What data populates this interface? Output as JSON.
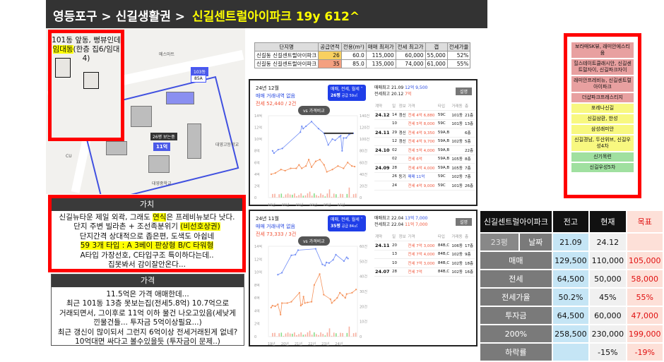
{
  "header": {
    "breadcrumb": "영등포구 > 신길생활권 >",
    "title": "신길센트럴아이파크 19y 612^"
  },
  "map": {
    "note_line1": "101동 앞동, 뻥뷰인데",
    "note_hl": "임대동",
    "note_rest": "(한층 집6/임대4)",
    "labels": {
      "mart": "메스마트",
      "dong": "103동",
      "area": "85A",
      "badge": "26평 보는중",
      "price_top": "26평",
      "price": "11억",
      "school1": "대영고등학교",
      "school2": "대영중학교",
      "cu": "CU",
      "complex": "신길센트럴아이파크"
    }
  },
  "value_box": {
    "title": "가치",
    "lines": [
      {
        "parts": [
          {
            "t": "신길뉴타운 제일 외곽, 그래도 "
          },
          {
            "t": "연식",
            "hl": true
          },
          {
            "t": "은 프레비뉴보다 낫다."
          }
        ]
      },
      {
        "parts": [
          {
            "t": "단지 주변 빌라촌 + 조선족분위기 "
          },
          {
            "t": "(비선호상권)",
            "hl": true
          }
        ]
      },
      {
        "parts": [
          {
            "t": "단지간격 상대적으로 좁은편, 도색도 아쉽네"
          }
        ]
      },
      {
        "parts": [
          {
            "t": "59 3개 타입 : A 3베이 판상형 B/C 타워형",
            "hl": true
          }
        ]
      },
      {
        "parts": [
          {
            "t": "A타입 가장선호, C타입구조 특이하다는데.."
          }
        ]
      },
      {
        "parts": [
          {
            "t": "집못봐서 감이잘안온다..."
          }
        ]
      }
    ]
  },
  "price_box": {
    "title": "가격",
    "lines": [
      "11.5억은 가격 애매한데...",
      "최근 101동 13층 못보는집(전세5.8억) 10.7억으로",
      "거래되면서, 그이후로 11억 이하 물건 나오고있음(세낮게",
      "낀물건들... 투자금 5억이상필요...)",
      "최근 갱신이 많이되서 그런지 6억이상 전세거래된게 없네?",
      "10억대면 싸다고 볼수있을듯 (투자금이 문제..)"
    ]
  },
  "excel": {
    "headers": [
      "단지명",
      "공급면적",
      "전용(m²)",
      "매매 최저가",
      "전세 최고가",
      "갭",
      "전세가율"
    ],
    "rows": [
      [
        "신길동 신길센트럴아이파크",
        "26",
        "60.0",
        "115,000",
        "60,000",
        "55,000",
        "52%"
      ],
      [
        "신길동 신길센트럴아이파크",
        "35",
        "85.0",
        "135,000",
        "74,000",
        "61,000",
        "55%"
      ]
    ]
  },
  "panels": [
    {
      "date": "24년 12월",
      "sale": "매매 거래내역 없음",
      "jeonse": "전세 52,440 / 2건",
      "tag1": "매매, 전세, 월세 ˅",
      "tag2": "26평",
      "tag3": "공급 59㎡",
      "vs": "vs 가격비교",
      "max_sale": "매매최고 21.09",
      "max_sale_v": "12억 9,500",
      "max_jeonse": "전세최고 20.12",
      "max_jeonse_v": "7억",
      "btn": "설명",
      "cols": [
        "계약",
        "일",
        "정보",
        "가격",
        "타입",
        "거래동",
        "층"
      ],
      "deals": [
        [
          "24.12",
          "14",
          "갱신",
          "전세 4억 6,880",
          "59C",
          "101동",
          "21층"
        ],
        [
          "",
          "10",
          "",
          "전세 5억 8,000",
          "59C",
          "101동",
          "13층"
        ],
        [
          "24.11",
          "29",
          "갱신",
          "전세 4억 9,350",
          "59A,B",
          "",
          "6층"
        ],
        [
          "",
          "12",
          "갱신",
          "전세 4억 9,700",
          "59A,B",
          "102동",
          "5층"
        ],
        [
          "24.10",
          "02",
          "",
          "전세 5억 4,000",
          "59A,B",
          "",
          "22층"
        ],
        [
          "",
          "02",
          "",
          "전세 6억",
          "59A,B",
          "105동",
          "8층"
        ],
        [
          "24.09",
          "28",
          "",
          "전세 4억 4,000",
          "59A,B",
          "105동",
          "7층"
        ],
        [
          "",
          "26",
          "등기",
          "매매 11억",
          "59C",
          "102동",
          "7층"
        ],
        [
          "",
          "24",
          "",
          "전세 4억 9,000",
          "59C",
          "101동",
          "26층"
        ]
      ],
      "chart": {
        "left_ticks": [
          "14억",
          "12억",
          "10억",
          "8억",
          "6억",
          "4억",
          "2억",
          "0"
        ],
        "right_ticks": [
          "140건",
          "120건",
          "100건",
          "80건",
          "60건",
          "40건",
          "20건",
          "0"
        ],
        "x_ticks": [
          "19년",
          "20년",
          "21년",
          "22년",
          "23년",
          "24년"
        ],
        "sale": [
          [
            19.1,
            8
          ],
          [
            19.2,
            7.6
          ],
          [
            19.5,
            8.2
          ],
          [
            19.8,
            8.4
          ],
          [
            21.1,
            11.2
          ],
          [
            21.2,
            12.2
          ],
          [
            21.3,
            11.8
          ],
          [
            21.5,
            12.2
          ],
          [
            21.9,
            13
          ],
          [
            22.4,
            11.8
          ],
          [
            22.8,
            11
          ],
          [
            23.1,
            9
          ],
          [
            23.4,
            10
          ],
          [
            23.6,
            9.8
          ],
          [
            23.9,
            10.4
          ],
          [
            24.0,
            10.6
          ],
          [
            24.1,
            8
          ],
          [
            24.2,
            10.2
          ],
          [
            24.4,
            10.2
          ],
          [
            24.6,
            10.8
          ],
          [
            24.9,
            11
          ]
        ],
        "jeonse": [
          [
            19.0,
            4
          ],
          [
            19.3,
            4.2
          ],
          [
            19.7,
            4.8
          ],
          [
            20.0,
            4.6
          ],
          [
            20.4,
            5
          ],
          [
            20.8,
            5
          ],
          [
            21.0,
            5.6
          ],
          [
            21.2,
            5
          ],
          [
            21.5,
            5.4
          ],
          [
            21.7,
            6.5
          ],
          [
            21.9,
            5.2
          ],
          [
            22.2,
            6.2
          ],
          [
            22.5,
            6.5
          ],
          [
            22.8,
            5.6
          ],
          [
            23.0,
            4.4
          ],
          [
            23.4,
            4.8
          ],
          [
            23.8,
            5.4
          ],
          [
            24.2,
            5
          ],
          [
            24.5,
            6
          ],
          [
            24.8,
            5.4
          ],
          [
            25.0,
            5.3
          ]
        ],
        "ref_line": 11,
        "ylim": [
          0,
          14
        ],
        "xlim": [
          18.8,
          25.2
        ]
      }
    },
    {
      "date": "24년 11월",
      "sale": "매매 거래내역 없음",
      "jeonse": "전세 73,333 / 3건",
      "tag1": "매매, 전세, 월세 ˅",
      "tag2": "35평",
      "tag3": "공급 84㎡",
      "vs": "vs 가격비교",
      "max_sale": "매매최고 22.04",
      "max_sale_v": "13억 7,000",
      "max_jeonse": "전세최고 22.04",
      "max_jeonse_v": "11억 7,000",
      "btn": "설명",
      "cols": [
        "계약",
        "일",
        "정보",
        "가격",
        "타입",
        "거래동",
        "층"
      ],
      "deals": [
        [
          "24.11",
          "20",
          "",
          "전세 7억 3,000",
          "84B,C",
          "106동",
          "17층"
        ],
        [
          "",
          "13",
          "",
          "전세 7억 4,000",
          "84B,C",
          "102동",
          "9층"
        ],
        [
          "",
          "10",
          "",
          "전세 7억 3,000",
          "84B,C",
          "102동",
          "18층"
        ],
        [
          "24.07",
          "28",
          "",
          "전세 7억",
          "84B,C",
          "102동",
          "16층"
        ]
      ],
      "chart": {
        "left_ticks": [
          "14억",
          "12억",
          "10억",
          "8억",
          "6억",
          "4억",
          "2억",
          "0"
        ],
        "right_ticks": [
          "60건",
          "50건",
          "40건",
          "30건",
          "20건",
          "10건",
          "0"
        ],
        "x_ticks": [
          "19년",
          "20년",
          "21년",
          "22년",
          "23년",
          "24년"
        ],
        "sale": [
          [
            19.5,
            9.6
          ],
          [
            19.8,
            9.9
          ],
          [
            20.5,
            12.6
          ],
          [
            20.8,
            12.7
          ],
          [
            21.0,
            13.4
          ],
          [
            22.3,
            13.6
          ],
          [
            22.8,
            11.2
          ],
          [
            23.0,
            11
          ],
          [
            23.1,
            11.5
          ],
          [
            23.3,
            11.4
          ],
          [
            23.6,
            11.9
          ],
          [
            23.8,
            12.7
          ],
          [
            24.4,
            11.7
          ],
          [
            24.6,
            12.3
          ],
          [
            24.7,
            12.1
          ]
        ],
        "jeonse": [
          [
            19.0,
            4.5
          ],
          [
            19.1,
            4.8
          ],
          [
            19.3,
            4.7
          ],
          [
            19.5,
            5
          ],
          [
            19.7,
            3.4
          ],
          [
            19.8,
            5.2
          ],
          [
            20.2,
            5.2
          ],
          [
            20.5,
            5.4
          ],
          [
            21.1,
            6.8
          ],
          [
            21.2,
            4.8
          ],
          [
            21.3,
            5
          ],
          [
            21.4,
            6.2
          ],
          [
            21.5,
            5.2
          ],
          [
            21.7,
            5.3
          ],
          [
            22.0,
            5.4
          ],
          [
            22.2,
            8
          ],
          [
            22.6,
            9.7
          ],
          [
            22.9,
            6.5
          ],
          [
            23.4,
            5.8
          ],
          [
            23.5,
            5.2
          ],
          [
            23.7,
            5.6
          ],
          [
            23.9,
            6
          ],
          [
            24.1,
            6.8
          ],
          [
            24.3,
            6.4
          ],
          [
            24.5,
            6
          ],
          [
            24.6,
            6.6
          ],
          [
            25.0,
            6.8
          ],
          [
            25.3,
            7.3
          ]
        ],
        "ylim": [
          0,
          14
        ],
        "xlim": [
          18.8,
          25.4
        ]
      }
    }
  ],
  "ranking": [
    {
      "t": "보라매SK뷰, 래미안에스티움",
      "c": "pk"
    },
    {
      "t": "힐스테이트클래시안, 신길센트럴자이, 신길파크자이",
      "c": "pk"
    },
    {
      "t": "래미안프레비뉴, 신길센트럴아이파크",
      "c": "pk"
    },
    {
      "t": "더샵파크프레스티지",
      "c": "pk"
    },
    {
      "t": "포레나신길",
      "c": "yw"
    },
    {
      "t": "신길삼환, 한성",
      "c": "yw"
    },
    {
      "t": "삼성래미안",
      "c": "yw"
    },
    {
      "t": "신길경남, 두산위브, 신길우성4차",
      "c": "yw"
    },
    {
      "t": "신기목련",
      "c": "gr"
    },
    {
      "t": "신길우성5차",
      "c": "gr"
    }
  ],
  "summary": {
    "title": "신길센트럴아이파크",
    "cols": [
      "전고",
      "현재",
      "목표"
    ],
    "pyeong": "23평",
    "date_label": "날짜",
    "dates": [
      "21.09",
      "24.12",
      ""
    ],
    "rows": [
      {
        "k": "매매",
        "v": [
          "129,500",
          "110,000",
          "105,000"
        ]
      },
      {
        "k": "전세",
        "v": [
          "64,500",
          "50,000",
          "58,000"
        ]
      },
      {
        "k": "전세가율",
        "v": [
          "50.2%",
          "45%",
          "55%"
        ]
      },
      {
        "k": "투자금",
        "v": [
          "64,500",
          "60,000",
          "47,000"
        ]
      },
      {
        "k": "200%",
        "v": [
          "258,500",
          "230,000",
          "199,000"
        ]
      },
      {
        "k": "하락률",
        "v": [
          "",
          "-15%",
          "-19%"
        ]
      }
    ]
  },
  "colors": {
    "sale": "#6f8cf5",
    "jeonse": "#f5925a",
    "accent_red": "#ff0000",
    "highlight": "#ffff00"
  }
}
